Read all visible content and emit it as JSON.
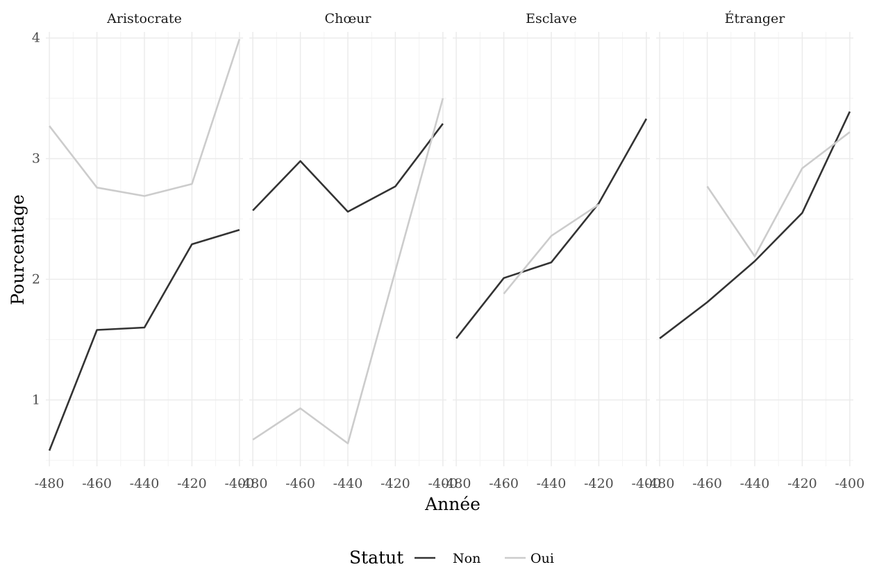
{
  "chart_data": {
    "type": "line",
    "xlabel": "Année",
    "ylabel": "Pourcentage",
    "x_ticks": [
      -480,
      -460,
      -440,
      -420,
      -400
    ],
    "y_ticks": [
      1,
      2,
      3,
      4
    ],
    "xlim": [
      -481.5,
      -398.5
    ],
    "ylim": [
      0.45,
      4.05
    ],
    "grid": true,
    "legend": {
      "title": "Statut",
      "position": "bottom",
      "entries": [
        {
          "label": "Non",
          "color": "#333333"
        },
        {
          "label": "Oui",
          "color": "#cccccc"
        }
      ]
    },
    "panels": [
      {
        "title": "Aristocrate",
        "series": [
          {
            "name": "Non",
            "color": "#333333",
            "points": [
              [
                -480,
                0.58
              ],
              [
                -460,
                1.58
              ],
              [
                -440,
                1.6
              ],
              [
                -420,
                2.29
              ],
              [
                -400,
                2.41
              ]
            ]
          },
          {
            "name": "Oui",
            "color": "#cccccc",
            "points": [
              [
                -480,
                3.27
              ],
              [
                -460,
                2.76
              ],
              [
                -440,
                2.69
              ],
              [
                -420,
                2.79
              ],
              [
                -400,
                3.99
              ]
            ]
          }
        ]
      },
      {
        "title": "Chœur",
        "series": [
          {
            "name": "Non",
            "color": "#333333",
            "points": [
              [
                -480,
                2.57
              ],
              [
                -460,
                2.98
              ],
              [
                -440,
                2.56
              ],
              [
                -420,
                2.77
              ],
              [
                -400,
                3.29
              ]
            ]
          },
          {
            "name": "Oui",
            "color": "#cccccc",
            "points": [
              [
                -480,
                0.67
              ],
              [
                -460,
                0.93
              ],
              [
                -440,
                0.64
              ],
              [
                -420,
                2.07
              ],
              [
                -400,
                3.5
              ]
            ]
          }
        ]
      },
      {
        "title": "Esclave",
        "series": [
          {
            "name": "Non",
            "color": "#333333",
            "points": [
              [
                -480,
                1.51
              ],
              [
                -460,
                2.01
              ],
              [
                -440,
                2.14
              ],
              [
                -420,
                2.63
              ],
              [
                -400,
                3.33
              ]
            ]
          },
          {
            "name": "Oui",
            "color": "#cccccc",
            "points": [
              [
                -460,
                1.88
              ],
              [
                -440,
                2.36
              ],
              [
                -420,
                2.62
              ]
            ]
          }
        ]
      },
      {
        "title": "Étranger",
        "series": [
          {
            "name": "Non",
            "color": "#333333",
            "points": [
              [
                -480,
                1.51
              ],
              [
                -460,
                1.81
              ],
              [
                -440,
                2.15
              ],
              [
                -420,
                2.55
              ],
              [
                -400,
                3.39
              ]
            ]
          },
          {
            "name": "Oui",
            "color": "#cccccc",
            "points": [
              [
                -460,
                2.77
              ],
              [
                -440,
                2.19
              ],
              [
                -420,
                2.92
              ],
              [
                -400,
                3.22
              ]
            ]
          }
        ]
      }
    ]
  }
}
